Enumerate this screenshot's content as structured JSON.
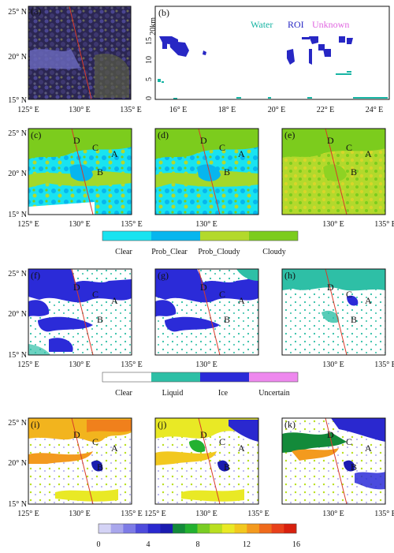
{
  "panels": {
    "a": {
      "label": "(a)"
    },
    "b": {
      "label": "(b)",
      "legend": {
        "water": "Water",
        "roi": "ROI",
        "unknown": "Unknown"
      }
    },
    "c": {
      "label": "(c)"
    },
    "d": {
      "label": "(d)"
    },
    "e": {
      "label": "(e)"
    },
    "f": {
      "label": "(f)"
    },
    "g": {
      "label": "(g)"
    },
    "h": {
      "label": "(h)"
    },
    "i": {
      "label": "(i)"
    },
    "j": {
      "label": "(j)"
    },
    "k": {
      "label": "(k)"
    }
  },
  "map_axes": {
    "lat_ticks": [
      "25° N",
      "20° N",
      "15° N"
    ],
    "lon_ticks": [
      "125° E",
      "130° E",
      "135° E"
    ],
    "lon_ticks_j": [
      "125° E",
      "130° E",
      "135° E"
    ]
  },
  "cross_section": {
    "y_ticks": [
      "20km",
      "15",
      "10",
      "5",
      "0"
    ],
    "x_ticks": [
      "16° E",
      "18° E",
      "20° E",
      "22° E",
      "24° E"
    ]
  },
  "region_markers": [
    "D",
    "C",
    "A",
    "B"
  ],
  "legend_cloud_mask": {
    "labels": [
      "Clear",
      "Prob_Clear",
      "Prob_Cloudy",
      "Cloudy"
    ],
    "colors": [
      "#19e3f0",
      "#07b6ee",
      "#b3d92c",
      "#7ccc1d"
    ]
  },
  "legend_phase": {
    "labels": [
      "Clear",
      "Liquid",
      "Ice",
      "Uncertain"
    ],
    "colors": [
      "#ffffff",
      "#2ebfa6",
      "#2b2bd8",
      "#ee88ee"
    ]
  },
  "colorbar": {
    "ticks": [
      "0",
      "4",
      "8",
      "12",
      "16"
    ],
    "colors": [
      "#d4d3f5",
      "#a9a7ec",
      "#7d7be6",
      "#4e4bdc",
      "#2a28cf",
      "#1a1cb0",
      "#138a3a",
      "#23b130",
      "#79cd24",
      "#b9df20",
      "#e9e925",
      "#f2c81e",
      "#f39a1e",
      "#ef6a1b",
      "#e8401a",
      "#d8200e"
    ]
  },
  "colors": {
    "track": "#d83a2a",
    "water": "#17b4a3",
    "roi": "#2727c4",
    "unknown": "#e066e0",
    "sat_dark": "#2a2550"
  }
}
